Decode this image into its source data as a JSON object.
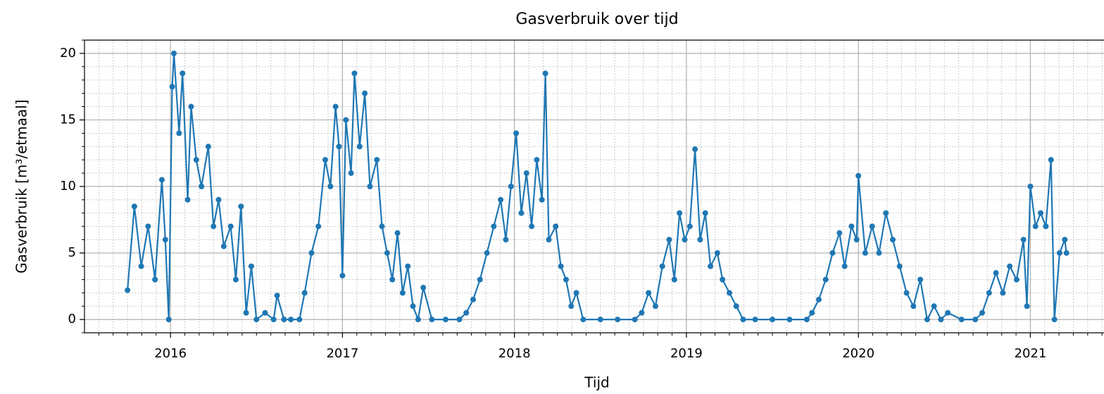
{
  "chart_data": {
    "type": "line",
    "title": "Gasverbruik over tijd",
    "x_label": "Tijd",
    "y_label": "Gasverbruik [m³/etmaal]",
    "x": [
      2015.75,
      2015.79,
      2015.83,
      2015.87,
      2015.91,
      2015.95,
      2015.97,
      2015.99,
      2016.01,
      2016.02,
      2016.05,
      2016.07,
      2016.1,
      2016.12,
      2016.15,
      2016.18,
      2016.22,
      2016.25,
      2016.28,
      2016.31,
      2016.35,
      2016.38,
      2016.41,
      2016.44,
      2016.47,
      2016.5,
      2016.55,
      2016.6,
      2016.62,
      2016.66,
      2016.7,
      2016.75,
      2016.78,
      2016.82,
      2016.86,
      2016.9,
      2016.93,
      2016.96,
      2016.98,
      2017.0,
      2017.02,
      2017.05,
      2017.07,
      2017.1,
      2017.13,
      2017.16,
      2017.2,
      2017.23,
      2017.26,
      2017.29,
      2017.32,
      2017.35,
      2017.38,
      2017.41,
      2017.44,
      2017.47,
      2017.52,
      2017.6,
      2017.68,
      2017.72,
      2017.76,
      2017.8,
      2017.84,
      2017.88,
      2017.92,
      2017.95,
      2017.98,
      2018.01,
      2018.04,
      2018.07,
      2018.1,
      2018.13,
      2018.16,
      2018.18,
      2018.2,
      2018.24,
      2018.27,
      2018.3,
      2018.33,
      2018.36,
      2018.4,
      2018.5,
      2018.6,
      2018.7,
      2018.74,
      2018.78,
      2018.82,
      2018.86,
      2018.9,
      2018.93,
      2018.96,
      2018.99,
      2019.02,
      2019.05,
      2019.08,
      2019.11,
      2019.14,
      2019.18,
      2019.21,
      2019.25,
      2019.29,
      2019.33,
      2019.4,
      2019.5,
      2019.6,
      2019.7,
      2019.73,
      2019.77,
      2019.81,
      2019.85,
      2019.89,
      2019.92,
      2019.96,
      2019.99,
      2020.0,
      2020.04,
      2020.08,
      2020.12,
      2020.16,
      2020.2,
      2020.24,
      2020.28,
      2020.32,
      2020.36,
      2020.4,
      2020.44,
      2020.48,
      2020.52,
      2020.6,
      2020.68,
      2020.72,
      2020.76,
      2020.8,
      2020.84,
      2020.88,
      2020.92,
      2020.96,
      2020.98,
      2021.0,
      2021.03,
      2021.06,
      2021.09,
      2021.12,
      2021.14,
      2021.17,
      2021.2,
      2021.21
    ],
    "series": [
      {
        "name": "Gasverbruik",
        "color": "#1f77b4",
        "values": [
          2.2,
          8.5,
          4,
          7,
          3,
          10.5,
          6,
          0,
          17.5,
          20,
          14,
          18.5,
          9,
          16,
          12,
          10,
          13,
          7,
          9,
          5.5,
          7,
          3,
          8.5,
          0.5,
          4,
          0,
          0.5,
          0,
          1.8,
          0,
          0,
          0,
          2,
          5,
          7,
          12,
          10,
          16,
          13,
          3.3,
          15,
          11,
          18.5,
          13,
          17,
          10,
          12,
          7,
          5,
          3,
          6.5,
          2,
          4,
          1,
          0,
          2.4,
          0,
          0,
          0,
          0.5,
          1.5,
          3,
          5,
          7,
          9,
          6,
          10,
          14,
          8,
          11,
          7,
          12,
          9,
          18.5,
          6,
          7,
          4,
          3,
          1,
          2,
          0,
          0,
          0,
          0,
          0.5,
          2,
          1,
          4,
          6,
          3,
          8,
          6,
          7,
          12.8,
          6,
          8,
          4,
          5,
          3,
          2,
          1,
          0,
          0,
          0,
          0,
          0,
          0.5,
          1.5,
          3,
          5,
          6.5,
          4,
          7,
          6,
          10.8,
          5,
          7,
          5,
          8,
          6,
          4,
          2,
          1,
          3,
          0,
          1,
          0,
          0.5,
          0,
          0,
          0.5,
          2,
          3.5,
          2,
          4,
          3,
          6,
          1,
          10,
          7,
          8,
          7,
          12,
          0,
          5,
          6,
          5
        ]
      }
    ],
    "xlim": [
      2015.5,
      2021.42
    ],
    "xticks": [
      2016,
      2017,
      2018,
      2019,
      2020,
      2021
    ],
    "ylim": [
      -1,
      21
    ],
    "yticks": [
      0,
      5,
      10,
      15,
      20
    ],
    "grid": true,
    "minor_grid": true
  }
}
